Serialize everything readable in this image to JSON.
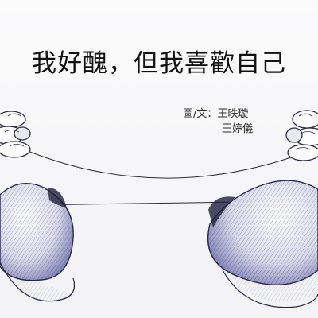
{
  "book": {
    "title": "我好醜，但我喜歡自己",
    "credit_label": "圖/文：",
    "authors": [
      "王昳璇",
      "王婷儀"
    ]
  },
  "colors": {
    "ink": "#1a1a1a",
    "pen_blue": "#3b3f8c",
    "paper": "#f7f7f9"
  }
}
